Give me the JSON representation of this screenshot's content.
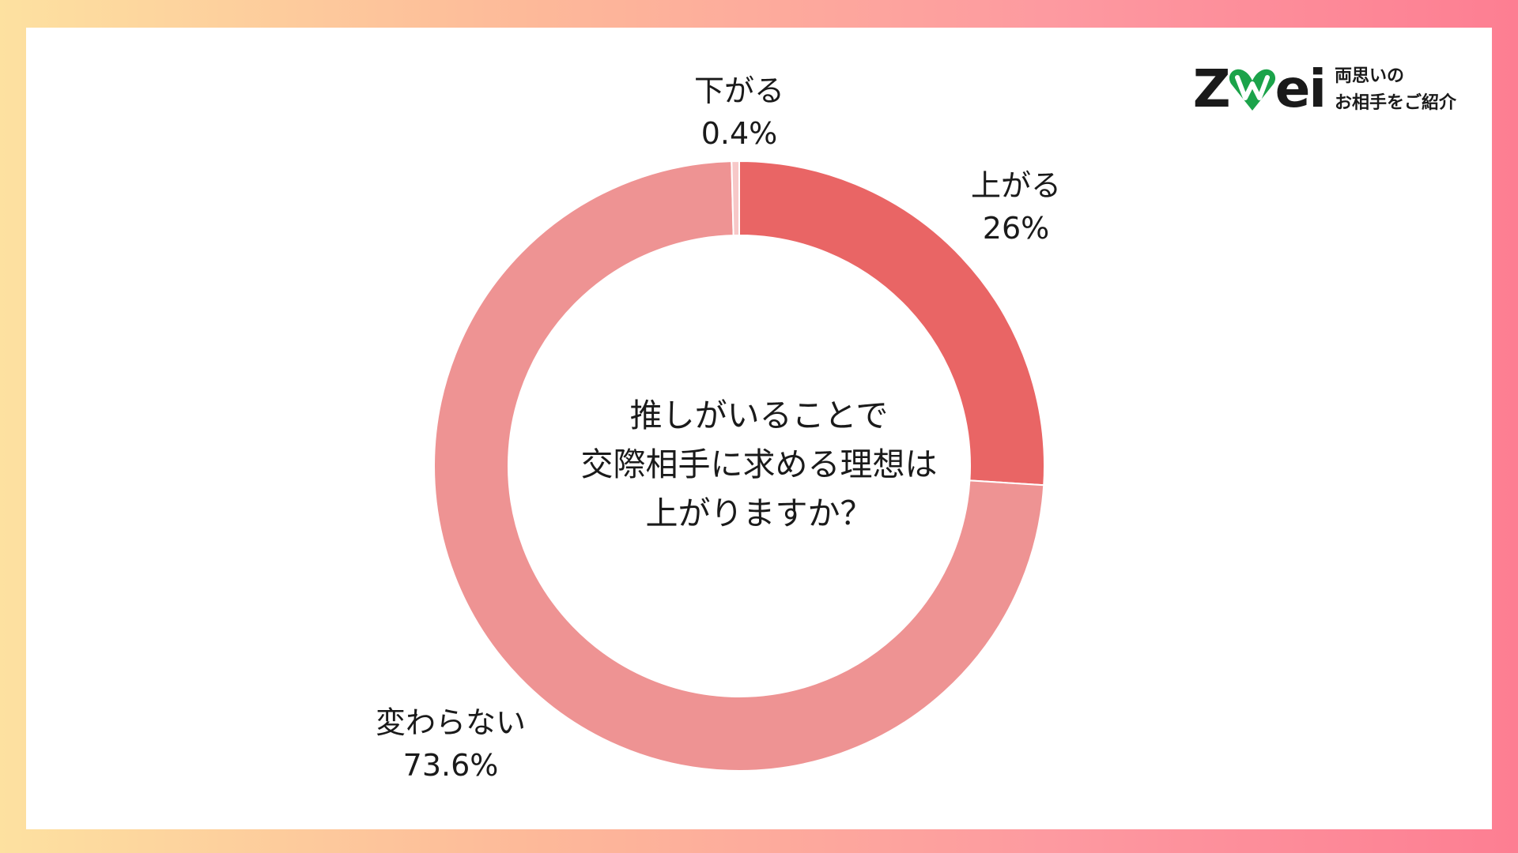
{
  "logo": {
    "word_left": "Z",
    "word_right": "ei",
    "tagline_line1": "両思いの",
    "tagline_line2": "お相手をご紹介",
    "heart_color": "#1ba34a"
  },
  "chart_data": {
    "type": "pie",
    "donut": true,
    "center_text": [
      "推しがいることで",
      "交際相手に求める理想は",
      "上がりますか？"
    ],
    "slices": [
      {
        "label": "上がる",
        "value": 26,
        "display": "26%",
        "color": "#e96565"
      },
      {
        "label": "変わらない",
        "value": 73.6,
        "display": "73.6%",
        "color": "#ee9393"
      },
      {
        "label": "下がる",
        "value": 0.4,
        "display": "0.4%",
        "color": "#f7c8c8"
      }
    ]
  }
}
